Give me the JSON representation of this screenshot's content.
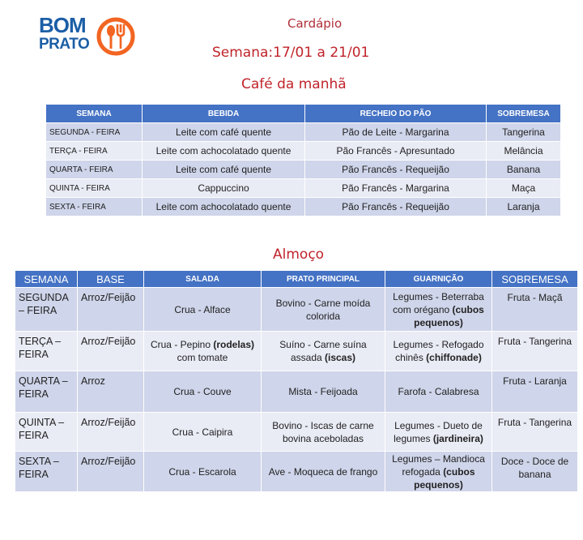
{
  "logo": {
    "line1": "BOM",
    "line2": "PRATO",
    "colors": {
      "text": "#1b5ea6",
      "icon": "#f26522"
    }
  },
  "header": {
    "title": "Cardápio",
    "week": "Semana:17/01 a 21/01"
  },
  "breakfast": {
    "title": "Café da manhã",
    "columns": [
      "SEMANA",
      "BEBIDA",
      "RECHEIO DO PÃO",
      "SOBREMESA"
    ],
    "rows": [
      [
        "SEGUNDA - FEIRA",
        "Leite com café quente",
        "Pão de Leite - Margarina",
        "Tangerina"
      ],
      [
        "TERÇA - FEIRA",
        "Leite com achocolatado quente",
        "Pão Francês - Apresuntado",
        "Melância"
      ],
      [
        "QUARTA - FEIRA",
        "Leite com café quente",
        "Pão Francês - Requeijão",
        "Banana"
      ],
      [
        "QUINTA - FEIRA",
        "Cappuccino",
        "Pão Francês - Margarina",
        "Maça"
      ],
      [
        "SEXTA - FEIRA",
        "Leite com achocolatado quente",
        "Pão Francês - Requeijão",
        "Laranja"
      ]
    ]
  },
  "lunch": {
    "title": "Almoço",
    "columns": [
      "SEMANA",
      "BASE",
      "SALADA",
      "PRATO PRINCIPAL",
      "GUARNIÇÃO",
      "SOBREMESA"
    ],
    "rows": [
      [
        [
          {
            "t": "SEGUNDA – FEIRA"
          }
        ],
        [
          {
            "t": "Arroz/Feijão"
          }
        ],
        [
          {
            "t": "Crua - Alface"
          }
        ],
        [
          {
            "t": "Bovino - Carne moída colorida"
          }
        ],
        [
          {
            "t": "Legumes - Beterraba com orégano "
          },
          {
            "t": "(cubos pequenos)",
            "b": true
          }
        ],
        [
          {
            "t": "Fruta - Maçã"
          }
        ]
      ],
      [
        [
          {
            "t": "TERÇA – FEIRA"
          }
        ],
        [
          {
            "t": "Arroz/Feijão"
          }
        ],
        [
          {
            "t": "Crua - Pepino "
          },
          {
            "t": "(rodelas)",
            "b": true
          },
          {
            "t": " com tomate"
          }
        ],
        [
          {
            "t": "Suíno - Carne suína assada "
          },
          {
            "t": "(iscas)",
            "b": true
          }
        ],
        [
          {
            "t": "Legumes - Refogado chinês "
          },
          {
            "t": "(chiffonade)",
            "b": true
          }
        ],
        [
          {
            "t": "Fruta - Tangerina"
          }
        ]
      ],
      [
        [
          {
            "t": "QUARTA – FEIRA"
          }
        ],
        [
          {
            "t": "Arroz"
          }
        ],
        [
          {
            "t": "Crua - Couve"
          }
        ],
        [
          {
            "t": "Mista - Feijoada"
          }
        ],
        [
          {
            "t": "Farofa - Calabresa"
          }
        ],
        [
          {
            "t": "Fruta - Laranja"
          }
        ]
      ],
      [
        [
          {
            "t": "QUINTA – FEIRA"
          }
        ],
        [
          {
            "t": "Arroz/Feijão"
          }
        ],
        [
          {
            "t": "Crua - Caipira"
          }
        ],
        [
          {
            "t": "Bovino - Iscas de carne bovina aceboladas"
          }
        ],
        [
          {
            "t": "Legumes - Dueto de legumes "
          },
          {
            "t": "(jardineira)",
            "b": true
          }
        ],
        [
          {
            "t": "Fruta - Tangerina"
          }
        ]
      ],
      [
        [
          {
            "t": "SEXTA – FEIRA"
          }
        ],
        [
          {
            "t": "Arroz/Feijão"
          }
        ],
        [
          {
            "t": "Crua - Escarola"
          }
        ],
        [
          {
            "t": "Ave - Moqueca de frango"
          }
        ],
        [
          {
            "t": "Legumes – Mandioca refogada "
          },
          {
            "t": "(cubos pequenos)",
            "b": true
          }
        ],
        [
          {
            "t": "Doce - Doce de banana"
          }
        ]
      ]
    ]
  },
  "colors": {
    "header": "#4472c4",
    "row_odd": "#cfd5ea",
    "row_even": "#e9ebf5",
    "title": "#c0242b"
  }
}
